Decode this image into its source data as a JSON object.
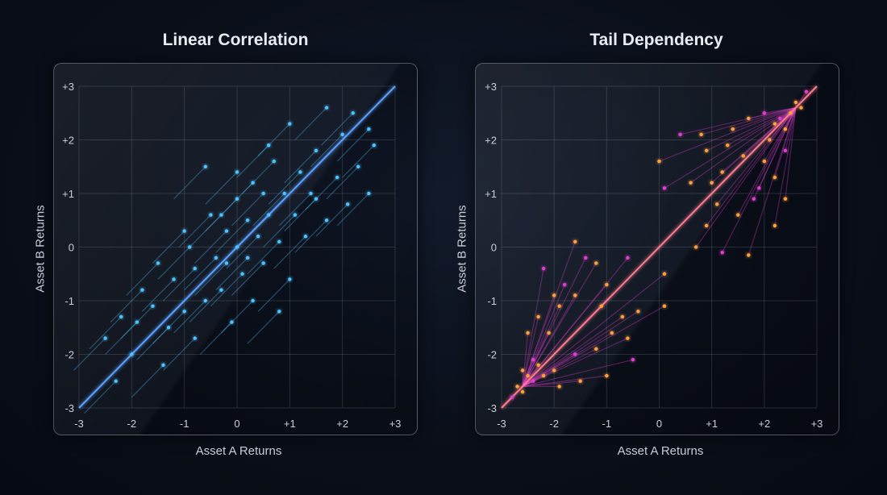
{
  "chart_data": [
    {
      "type": "scatter",
      "title": "Linear Correlation",
      "xlabel": "Asset A Returns",
      "ylabel": "Asset B Returns",
      "xlim": [
        -3,
        3
      ],
      "ylim": [
        -3,
        3
      ],
      "xticks": [
        "-3",
        "-2",
        "-1",
        "0",
        "+1",
        "+2",
        "+3"
      ],
      "yticks": [
        "-3",
        "-2",
        "-1",
        "0",
        "+1",
        "+2",
        "+3"
      ],
      "grid": true,
      "reference_line": [
        [
          -3,
          -3
        ],
        [
          3,
          3
        ]
      ],
      "color": "#4fc3ff",
      "axis_color": "#3d8bff",
      "points": [
        [
          -2.3,
          -2.5
        ],
        [
          -2.5,
          -1.7
        ],
        [
          -2.2,
          -1.3
        ],
        [
          -1.9,
          -1.4
        ],
        [
          -1.8,
          -0.8
        ],
        [
          -1.5,
          -0.3
        ],
        [
          -1.4,
          -2.2
        ],
        [
          -1.2,
          -0.6
        ],
        [
          -1.0,
          -1.2
        ],
        [
          -1.0,
          0.3
        ],
        [
          -0.8,
          -1.7
        ],
        [
          -0.8,
          -0.4
        ],
        [
          -0.6,
          -1.0
        ],
        [
          -0.5,
          0.6
        ],
        [
          -0.4,
          -0.2
        ],
        [
          -0.3,
          -0.8
        ],
        [
          -0.2,
          0.3
        ],
        [
          -0.1,
          -1.4
        ],
        [
          0,
          0
        ],
        [
          0,
          0.9
        ],
        [
          0.1,
          -0.5
        ],
        [
          0.2,
          0.5
        ],
        [
          0.3,
          1.2
        ],
        [
          0.3,
          -1.0
        ],
        [
          0.4,
          0.2
        ],
        [
          0.5,
          1.0
        ],
        [
          0.5,
          -0.3
        ],
        [
          0.6,
          0.6
        ],
        [
          0.7,
          1.6
        ],
        [
          0.8,
          0.1
        ],
        [
          0.9,
          1.0
        ],
        [
          1.0,
          2.3
        ],
        [
          1.0,
          -0.6
        ],
        [
          1.1,
          0.6
        ],
        [
          1.2,
          1.4
        ],
        [
          1.3,
          0.2
        ],
        [
          1.5,
          1.8
        ],
        [
          1.5,
          0.9
        ],
        [
          1.7,
          2.6
        ],
        [
          1.7,
          0.5
        ],
        [
          1.9,
          1.3
        ],
        [
          2.0,
          2.1
        ],
        [
          2.1,
          0.8
        ],
        [
          2.2,
          2.5
        ],
        [
          2.3,
          1.5
        ],
        [
          2.5,
          2.2
        ],
        [
          2.5,
          1.0
        ],
        [
          2.6,
          1.9
        ],
        [
          -0.6,
          1.5
        ],
        [
          0.0,
          1.4
        ],
        [
          -1.6,
          -1.1
        ],
        [
          -2.0,
          -2.0
        ],
        [
          -0.3,
          0.6
        ],
        [
          0.2,
          -0.2
        ],
        [
          -0.9,
          0.0
        ],
        [
          0.8,
          -1.2
        ],
        [
          1.4,
          1.0
        ],
        [
          -1.3,
          -1.5
        ],
        [
          0.6,
          1.9
        ],
        [
          -0.2,
          -0.3
        ]
      ]
    },
    {
      "type": "scatter",
      "title": "Tail Dependency",
      "xlabel": "Asset A Returns",
      "ylabel": "Asset B Returns",
      "xlim": [
        -3,
        3
      ],
      "ylim": [
        -3,
        3
      ],
      "xticks": [
        "-3",
        "-2",
        "-1",
        "0",
        "+1",
        "+2",
        "+3"
      ],
      "yticks": [
        "-3",
        "-2",
        "-1",
        "0",
        "+1",
        "+2",
        "+3"
      ],
      "grid": true,
      "reference_line": [
        [
          -3,
          -3
        ],
        [
          3,
          3
        ]
      ],
      "color": "#ffa040",
      "secondary_color": "#e040d0",
      "axis_color": "#ff9a30",
      "points": [
        [
          -2.8,
          -2.8
        ],
        [
          -2.7,
          -2.6
        ],
        [
          -2.6,
          -2.7
        ],
        [
          -2.5,
          -2.4
        ],
        [
          -2.4,
          -2.5
        ],
        [
          -2.6,
          -2.3
        ],
        [
          -2.3,
          -2.2
        ],
        [
          -2.2,
          -2.4
        ],
        [
          -2.4,
          -2.1
        ],
        [
          -2.5,
          -1.6
        ],
        [
          -2.3,
          -1.3
        ],
        [
          -2.0,
          -0.9
        ],
        [
          -1.8,
          -0.7
        ],
        [
          -2.1,
          -1.6
        ],
        [
          -1.9,
          -1.1
        ],
        [
          -1.6,
          -0.9
        ],
        [
          -1.4,
          -0.2
        ],
        [
          -1.2,
          -0.3
        ],
        [
          -1.1,
          -1.1
        ],
        [
          -1.0,
          -0.7
        ],
        [
          -0.6,
          -0.2
        ],
        [
          -0.9,
          -1.6
        ],
        [
          -1.2,
          -1.9
        ],
        [
          -0.6,
          -1.7
        ],
        [
          -0.5,
          -2.1
        ],
        [
          -1.0,
          -2.4
        ],
        [
          -1.5,
          -2.5
        ],
        [
          -1.9,
          -2.6
        ],
        [
          -1.6,
          -2.0
        ],
        [
          -2.0,
          -2.3
        ],
        [
          -0.4,
          -1.2
        ],
        [
          -0.7,
          -1.3
        ],
        [
          -2.2,
          -0.4
        ],
        [
          -1.6,
          0.1
        ],
        [
          0.1,
          -1.1
        ],
        [
          0.1,
          -0.5
        ],
        [
          2.8,
          2.9
        ],
        [
          2.6,
          2.7
        ],
        [
          2.5,
          2.5
        ],
        [
          2.7,
          2.6
        ],
        [
          2.3,
          2.4
        ],
        [
          2.4,
          2.2
        ],
        [
          2.2,
          2.3
        ],
        [
          2.1,
          2.0
        ],
        [
          2.0,
          2.5
        ],
        [
          1.7,
          2.4
        ],
        [
          1.4,
          2.2
        ],
        [
          0.8,
          2.1
        ],
        [
          0.4,
          2.1
        ],
        [
          0.9,
          1.8
        ],
        [
          1.2,
          1.4
        ],
        [
          1.6,
          1.7
        ],
        [
          1.9,
          1.1
        ],
        [
          2.2,
          1.3
        ],
        [
          2.4,
          0.9
        ],
        [
          2.2,
          0.4
        ],
        [
          1.8,
          0.9
        ],
        [
          1.5,
          0.6
        ],
        [
          1.1,
          0.8
        ],
        [
          0.9,
          0.4
        ],
        [
          1.2,
          -0.1
        ],
        [
          1.7,
          -0.15
        ],
        [
          0.6,
          1.2
        ],
        [
          0.0,
          1.6
        ],
        [
          0.1,
          1.1
        ],
        [
          0.7,
          0.0
        ],
        [
          1.0,
          1.2
        ],
        [
          2.0,
          1.6
        ],
        [
          2.4,
          1.8
        ],
        [
          1.3,
          1.9
        ]
      ]
    }
  ]
}
